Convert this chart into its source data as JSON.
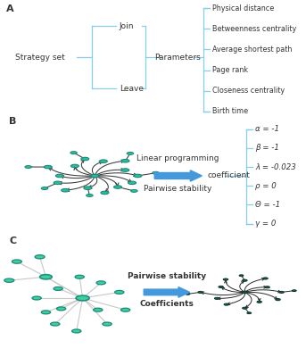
{
  "panel_A_label": "A",
  "panel_B_label": "B",
  "panel_C_label": "C",
  "strategy_set": "Strategy set",
  "join": "Join",
  "leave": "Leave",
  "parameters": "Parameters",
  "params_list": [
    "Physical distance",
    "Betweenness centrality",
    "Average shortest path",
    "Page rank",
    "Closeness centrality",
    "Birth time"
  ],
  "linear_programming": "Linear programming",
  "pairwise_stability": "Pairwise stability",
  "coefficient": "coefficient",
  "coefficients_label": "Coefficients",
  "pairwise_stability_C": "Pairwise stability",
  "coeff_list": [
    "α = -1",
    "β = -1",
    "λ = -0.023",
    "ρ = 0",
    "Θ = -1",
    "γ = 0"
  ],
  "bracket_color": "#87CEEB",
  "arrow_color": "#4499DD",
  "node_color_B": "#2DBD9B",
  "node_edge_color_B": "#1A8A7A",
  "node_color_C_left": "#3ECFA0",
  "node_edge_color_C_left": "#1A8A7A",
  "node_color_C_right": "#1A5C50",
  "node_edge_color_C_right": "#0D3530",
  "line_color": "#555555",
  "text_color": "#333333",
  "bg_color": "#FFFFFF"
}
